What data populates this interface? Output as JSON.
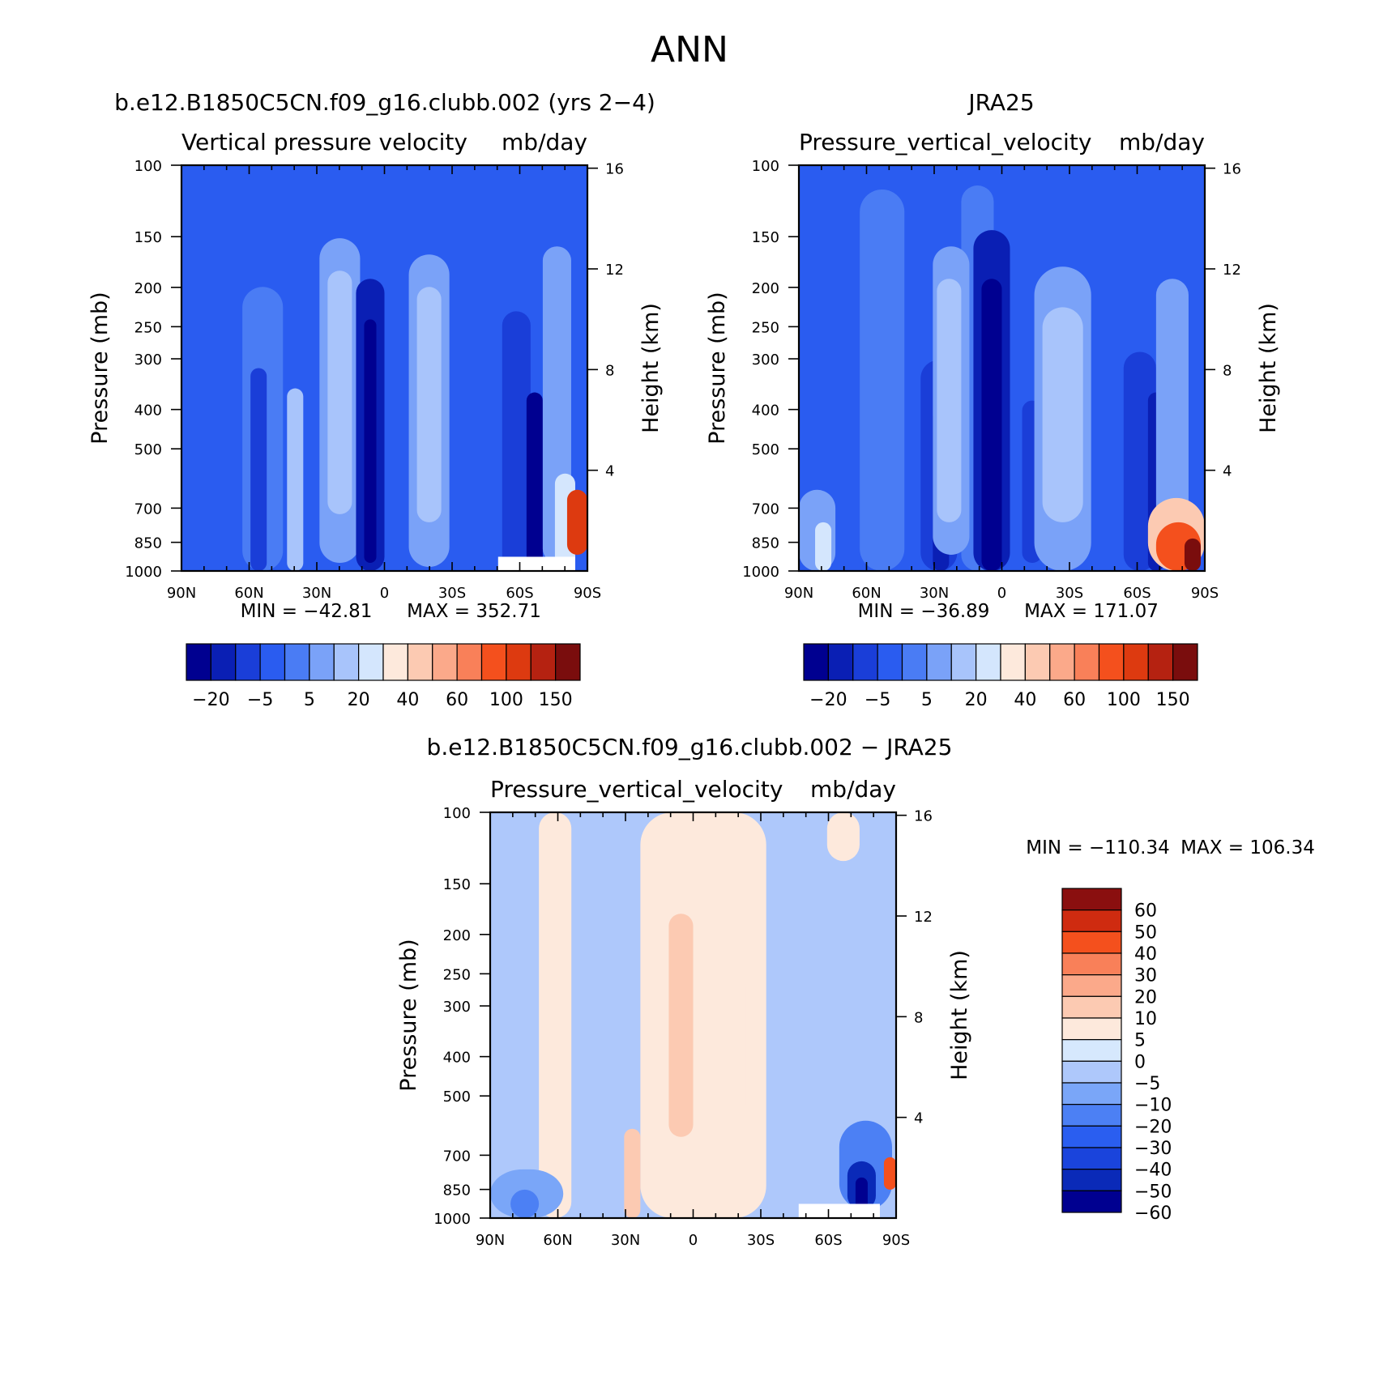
{
  "colors": {
    "main_scale": [
      "#000090",
      "#0a1fb4",
      "#1a3ed8",
      "#2a5cf0",
      "#4a7cf4",
      "#7aa2f8",
      "#a8c4fb",
      "#d4e6fd",
      "#fde9dc",
      "#fccab2",
      "#fba98a",
      "#f98059",
      "#f4501d",
      "#dd3a10",
      "#b52211",
      "#7a0d0d"
    ],
    "diff_scale": [
      "#000090",
      "#0a2ab8",
      "#1a44dc",
      "#2a5ef0",
      "#4c80f4",
      "#7aa6f8",
      "#aec8fb",
      "#d6e8fd",
      "#fde9dc",
      "#fccab2",
      "#fba98a",
      "#f98059",
      "#f4501d",
      "#cf2b10",
      "#8a0f0f"
    ],
    "frame": "#000000"
  },
  "chart_data": {
    "type": "heatmap",
    "title": "ANN",
    "panels": [
      {
        "id": "model",
        "title": "b.e12.B1850C5CN.f09_g16.clubb.002 (yrs 2−4)",
        "subtitle_left": "Vertical pressure velocity",
        "subtitle_right": "mb/day",
        "ylabel": "Pressure (mb)",
        "ylabel_right": "Height (km)",
        "x_ticks": [
          "90N",
          "60N",
          "30N",
          "0",
          "30S",
          "60S",
          "90S"
        ],
        "y_ticks": [
          "100",
          "150",
          "200",
          "250",
          "300",
          "400",
          "500",
          "700",
          "850",
          "1000"
        ],
        "y_ticks_right": [
          "16",
          "12",
          "8",
          "4"
        ],
        "min_text": "MIN = −42.81",
        "max_text": "MAX = 352.71",
        "min": -42.81,
        "max": 352.71,
        "colorbar_labels": [
          "−20",
          "−5",
          "5",
          "20",
          "40",
          "60",
          "100",
          "150"
        ],
        "colorbar_levels": [
          -30,
          -20,
          -10,
          -5,
          0,
          5,
          10,
          20,
          30,
          40,
          50,
          60,
          80,
          100,
          150
        ]
      },
      {
        "id": "obs",
        "title": "JRA25",
        "subtitle_left": "Pressure_vertical_velocity",
        "subtitle_right": "mb/day",
        "ylabel": "Pressure (mb)",
        "ylabel_right": "Height (km)",
        "x_ticks": [
          "90N",
          "60N",
          "30N",
          "0",
          "30S",
          "60S",
          "90S"
        ],
        "y_ticks": [
          "100",
          "150",
          "200",
          "250",
          "300",
          "400",
          "500",
          "700",
          "850",
          "1000"
        ],
        "y_ticks_right": [
          "16",
          "12",
          "8",
          "4"
        ],
        "min_text": "MIN = −36.89",
        "max_text": "MAX = 171.07",
        "min": -36.89,
        "max": 171.07,
        "colorbar_labels": [
          "−20",
          "−5",
          "5",
          "20",
          "40",
          "60",
          "100",
          "150"
        ],
        "colorbar_levels": [
          -30,
          -20,
          -10,
          -5,
          0,
          5,
          10,
          20,
          30,
          40,
          50,
          60,
          80,
          100,
          150
        ]
      },
      {
        "id": "diff",
        "title": "b.e12.B1850C5CN.f09_g16.clubb.002 − JRA25",
        "subtitle_left": "Pressure_vertical_velocity",
        "subtitle_right": "mb/day",
        "ylabel": "Pressure (mb)",
        "ylabel_right": "Height (km)",
        "x_ticks": [
          "90N",
          "60N",
          "30N",
          "0",
          "30S",
          "60S",
          "90S"
        ],
        "y_ticks": [
          "100",
          "150",
          "200",
          "250",
          "300",
          "400",
          "500",
          "700",
          "850",
          "1000"
        ],
        "y_ticks_right": [
          "16",
          "12",
          "8",
          "4"
        ],
        "min_text": "MIN = −110.34",
        "max_text": "MAX = 106.34",
        "min": -110.34,
        "max": 106.34,
        "colorbar_labels": [
          "60",
          "50",
          "40",
          "30",
          "20",
          "10",
          "5",
          "0",
          "−5",
          "−10",
          "−20",
          "−30",
          "−40",
          "−50",
          "−60"
        ],
        "colorbar_levels": [
          -60,
          -50,
          -40,
          -30,
          -20,
          -10,
          -5,
          0,
          5,
          10,
          20,
          30,
          40,
          50,
          60
        ]
      }
    ]
  }
}
